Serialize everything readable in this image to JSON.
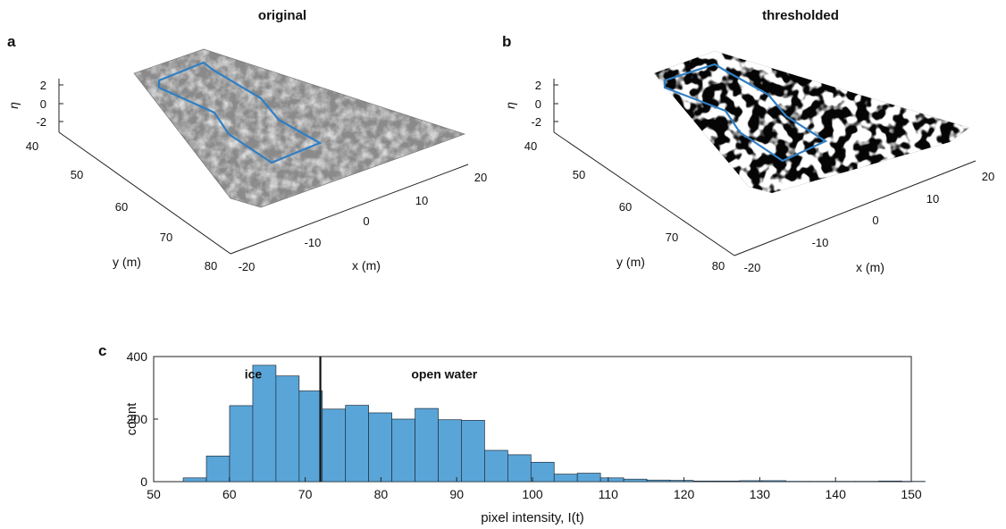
{
  "panels": {
    "a": {
      "letter": "a",
      "title": "original",
      "z_label": "η",
      "x_label": "x (m)",
      "y_label": "y (m)",
      "z_ticks": [
        "2",
        "0",
        "-2"
      ],
      "y_ticks": [
        "40",
        "50",
        "60",
        "70",
        "80"
      ],
      "x_ticks": [
        "-20",
        "-10",
        "0",
        "10",
        "20"
      ]
    },
    "b": {
      "letter": "b",
      "title": "thresholded",
      "z_label": "η",
      "x_label": "x (m)",
      "y_label": "y (m)",
      "z_ticks": [
        "2",
        "0",
        "-2"
      ],
      "y_ticks": [
        "40",
        "50",
        "60",
        "70",
        "80"
      ],
      "x_ticks": [
        "-20",
        "-10",
        "0",
        "10",
        "20"
      ]
    }
  },
  "colors": {
    "bar_fill": "#5aa5d8",
    "bar_edge": "#1f2f3d",
    "outline_blue": "#2f7fc4",
    "surface_gray": "#8a8a8a"
  },
  "chart_data": [
    {
      "type": "bar",
      "panel": "c",
      "letter": "c",
      "title": "",
      "xlabel": "pixel intensity, I(t)",
      "ylabel": "count",
      "xlim": [
        50,
        150
      ],
      "ylim": [
        0,
        400
      ],
      "x_ticks": [
        50,
        60,
        70,
        80,
        90,
        100,
        110,
        120,
        130,
        140,
        150
      ],
      "y_ticks": [
        0,
        200,
        400
      ],
      "bin_width": 3.06,
      "bin_edges_start": 53.9,
      "values": [
        12,
        82,
        243,
        372,
        338,
        290,
        232,
        244,
        220,
        200,
        234,
        198,
        196,
        100,
        86,
        62,
        24,
        27,
        12,
        8,
        5,
        4,
        2,
        2,
        3,
        3,
        1,
        1,
        1,
        1,
        2,
        1
      ],
      "threshold": 72,
      "annotations": [
        {
          "text": "ice",
          "x": 62,
          "y": 330
        },
        {
          "text": "open water",
          "x": 84,
          "y": 330
        }
      ]
    }
  ]
}
